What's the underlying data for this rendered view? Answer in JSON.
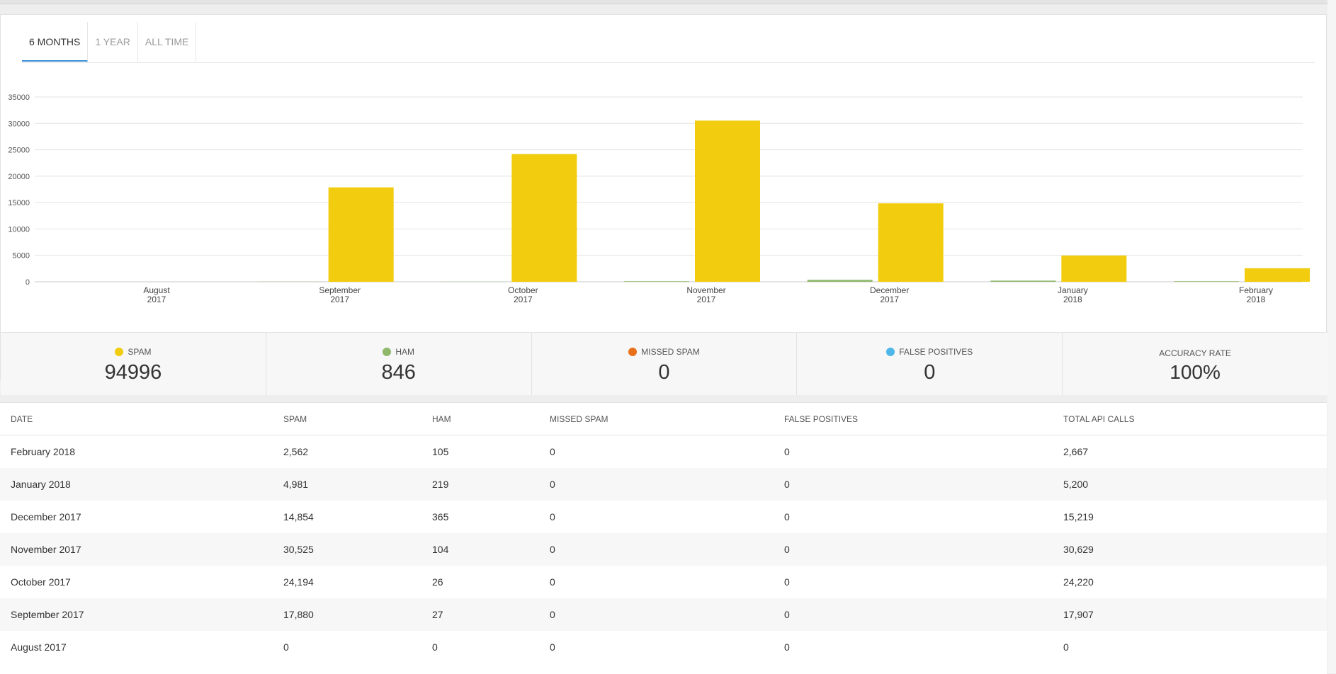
{
  "tabs": [
    "6 MONTHS",
    "1 YEAR",
    "ALL TIME"
  ],
  "active_tab": 0,
  "colors": {
    "spam": "#f2cc0f",
    "ham": "#8fb86b",
    "missed": "#e8701a",
    "false_pos": "#4eb6e8",
    "accent": "#3a8fd6"
  },
  "chart_data": {
    "type": "bar",
    "categories": [
      [
        "August",
        "2017"
      ],
      [
        "September",
        "2017"
      ],
      [
        "October",
        "2017"
      ],
      [
        "November",
        "2017"
      ],
      [
        "December",
        "2017"
      ],
      [
        "January",
        "2018"
      ],
      [
        "February",
        "2018"
      ]
    ],
    "series": [
      {
        "name": "HAM",
        "values": [
          0,
          27,
          26,
          104,
          365,
          219,
          105
        ],
        "color": "#8fb86b"
      },
      {
        "name": "SPAM",
        "values": [
          0,
          17880,
          24194,
          30525,
          14854,
          4981,
          2562
        ],
        "color": "#f2cc0f"
      }
    ],
    "yticks": [
      "0",
      "5000",
      "10000",
      "15000",
      "20000",
      "25000",
      "30000",
      "35000"
    ],
    "ylim": [
      0,
      35000
    ],
    "grid": true
  },
  "stats": [
    {
      "label": "SPAM",
      "value": "94996",
      "icon": "spam-dot-icon",
      "color": "#f2cc0f"
    },
    {
      "label": "HAM",
      "value": "846",
      "icon": "ham-dot-icon",
      "color": "#8fb86b"
    },
    {
      "label": "MISSED SPAM",
      "value": "0",
      "icon": "missed-spam-dot-icon",
      "color": "#e8701a"
    },
    {
      "label": "FALSE POSITIVES",
      "value": "0",
      "icon": "false-positives-dot-icon",
      "color": "#4eb6e8"
    },
    {
      "label": "ACCURACY RATE",
      "value": "100%"
    }
  ],
  "table": {
    "headers": [
      "DATE",
      "SPAM",
      "HAM",
      "MISSED SPAM",
      "FALSE POSITIVES",
      "TOTAL API CALLS"
    ],
    "rows": [
      [
        "February 2018",
        "2,562",
        "105",
        "0",
        "0",
        "2,667"
      ],
      [
        "January 2018",
        "4,981",
        "219",
        "0",
        "0",
        "5,200"
      ],
      [
        "December 2017",
        "14,854",
        "365",
        "0",
        "0",
        "15,219"
      ],
      [
        "November 2017",
        "30,525",
        "104",
        "0",
        "0",
        "30,629"
      ],
      [
        "October 2017",
        "24,194",
        "26",
        "0",
        "0",
        "24,220"
      ],
      [
        "September 2017",
        "17,880",
        "27",
        "0",
        "0",
        "17,907"
      ],
      [
        "August 2017",
        "0",
        "0",
        "0",
        "0",
        "0"
      ]
    ]
  }
}
